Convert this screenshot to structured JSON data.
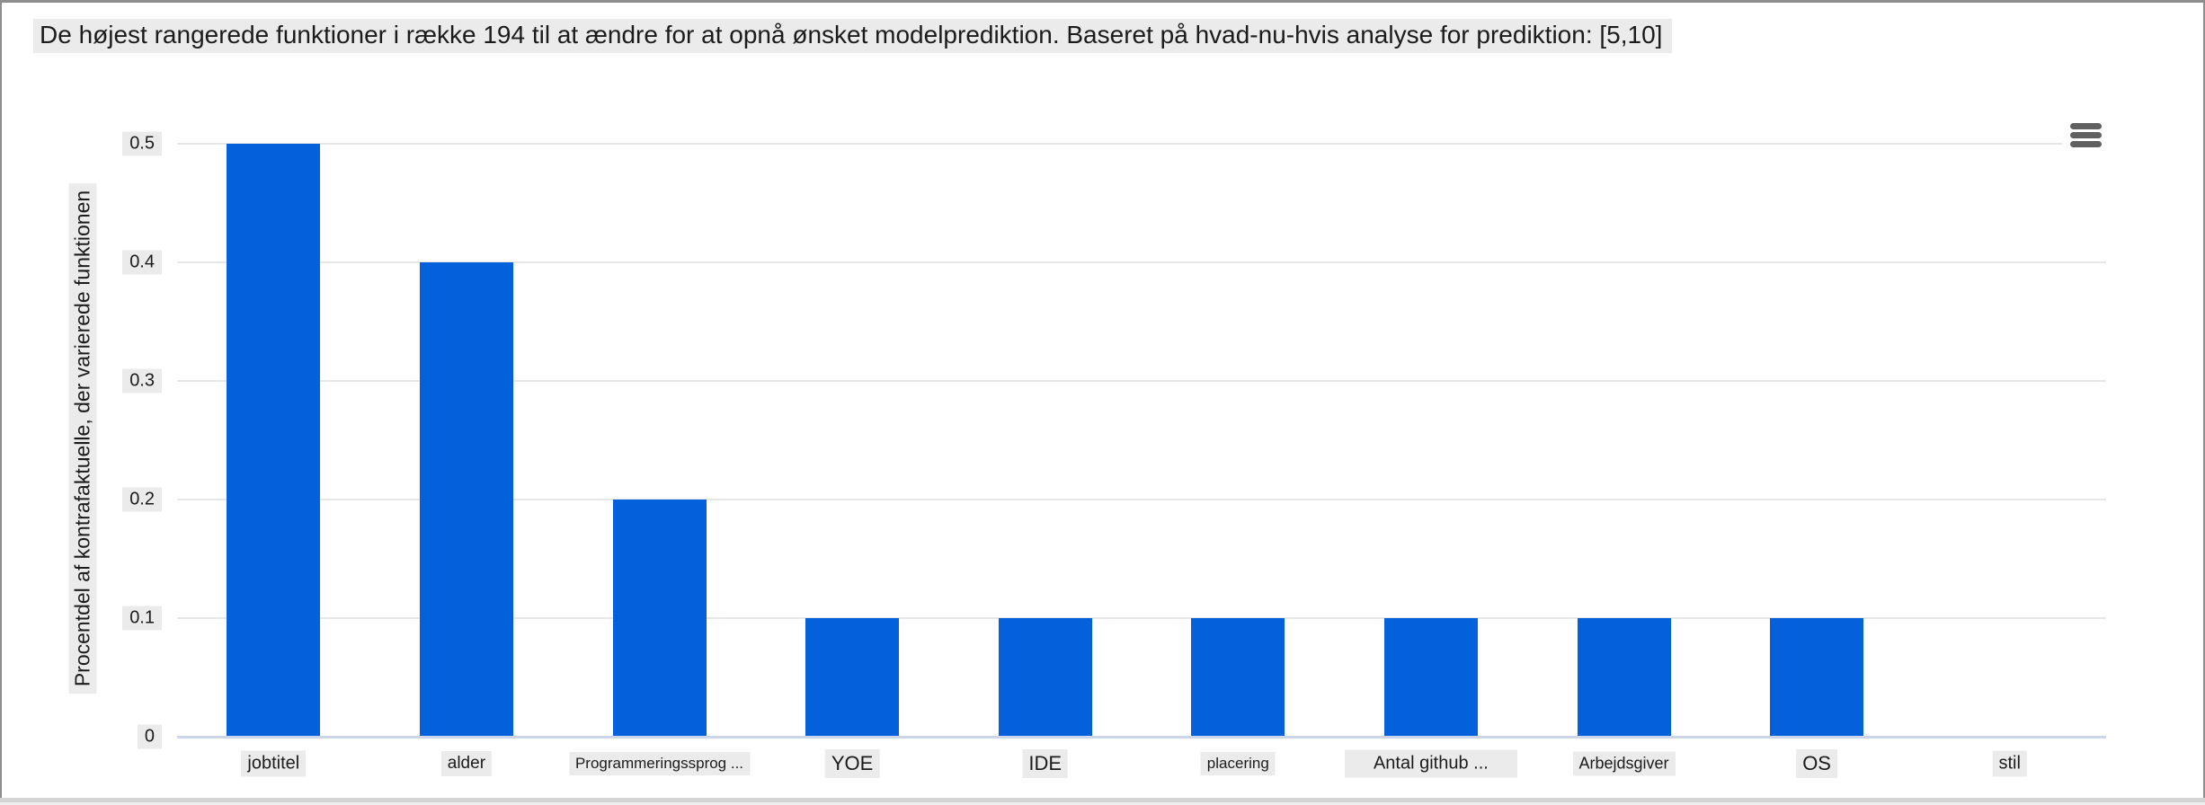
{
  "chart_data": {
    "type": "bar",
    "title": "De højest rangerede funktioner i række 194 til at ændre for at opnå ønsket modelprediktion. Baseret på hvad-nu-hvis analyse for prediktion: [5,10]",
    "categories": [
      "jobtitel",
      "alder",
      "Programmeringssprog ...",
      "YOE",
      "IDE",
      "placering",
      "Antal github ...",
      "Arbejdsgiver",
      "OS",
      "stil"
    ],
    "values": [
      0.5,
      0.4,
      0.2,
      0.1,
      0.1,
      0.1,
      0.1,
      0.1,
      0.1,
      0
    ],
    "xlabel": "",
    "ylabel": "Procentdel af kontrafaktuelle, der varierede funktionen",
    "ylim": [
      0,
      0.5
    ],
    "yticks": [
      0,
      0.1,
      0.2,
      0.3,
      0.4,
      0.5
    ],
    "grid": true,
    "legend": false,
    "bar_color": "#0561db"
  },
  "toolbar": {
    "menu_icon": "hamburger-menu-icon"
  },
  "colors": {
    "bar": "#0561db",
    "gridline": "#e7e7e7",
    "axis_line": "#ccd6eb",
    "label_background": "#ebebeb",
    "text": "#1b1b1b",
    "frame_border": "#8d8d8d"
  }
}
